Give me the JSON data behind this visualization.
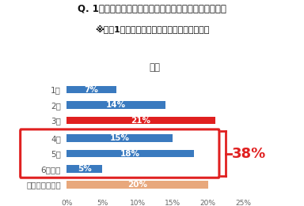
{
  "title_line1": "Q. 1週間のうちアルバイトができる日数は何日ですか？",
  "title_line2": "※直近1年間のことについてお答えください。",
  "subtitle": "全体",
  "categories": [
    "1日",
    "2日",
    "3日",
    "4日",
    "5日",
    "6日以上",
    "決まっていない"
  ],
  "values": [
    7,
    14,
    21,
    15,
    18,
    5,
    20
  ],
  "bar_colors": [
    "#3a7abf",
    "#3a7abf",
    "#e02020",
    "#3a7abf",
    "#3a7abf",
    "#3a7abf",
    "#e8a87c"
  ],
  "label_texts": [
    "7%",
    "14%",
    "21%",
    "15%",
    "18%",
    "5%",
    "20%"
  ],
  "highlight_indices": [
    3,
    4,
    5
  ],
  "highlight_box_color": "#e02020",
  "highlight_label": "38%",
  "highlight_label_color": "#e02020",
  "xtick_labels": [
    "0%",
    "5%",
    "10%",
    "15%",
    "20%",
    "25%"
  ],
  "xtick_values": [
    0,
    5,
    10,
    15,
    20,
    25
  ],
  "xlim": [
    0,
    25
  ],
  "background_color": "#ffffff",
  "bar_height": 0.5,
  "title_fontsize": 8.5,
  "category_fontsize": 7.5,
  "value_fontsize": 7.5,
  "subtitle_fontsize": 8.5,
  "gap_after_3": true
}
